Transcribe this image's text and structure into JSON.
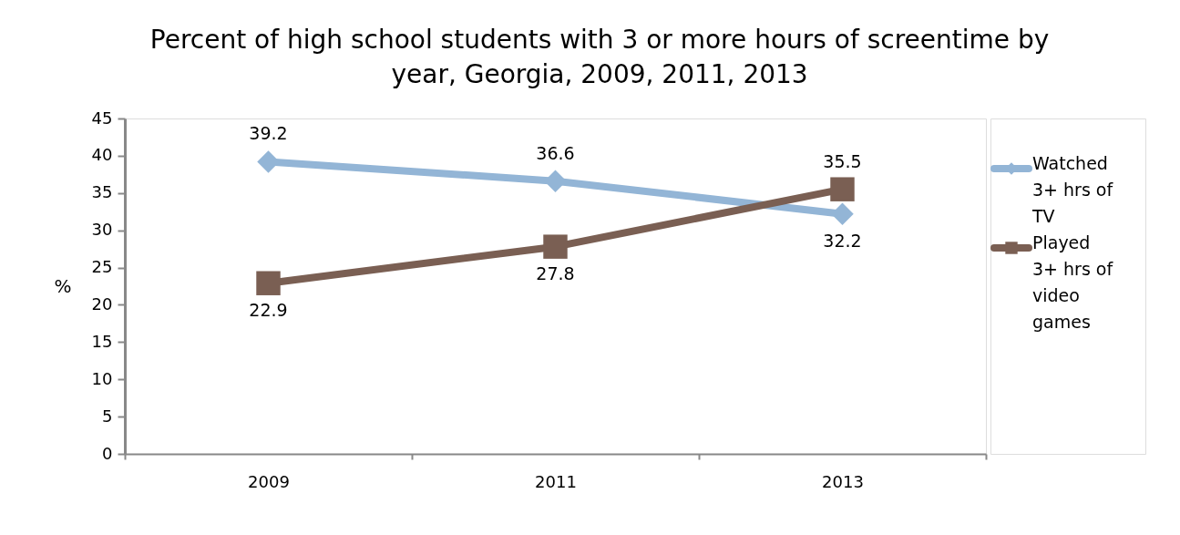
{
  "chart_data": {
    "type": "line",
    "title": "Percent of high school students with 3 or more hours of screentime by year, Georgia, 2009, 2011, 2013",
    "ylabel": "%",
    "categories": [
      "2009",
      "2011",
      "2013"
    ],
    "series": [
      {
        "name": "Watched 3+ hrs of TV",
        "color": "#93b5d6",
        "marker": "diamond",
        "values": [
          39.2,
          36.6,
          32.2
        ]
      },
      {
        "name": "Played 3+ hrs of video games",
        "color": "#7a5f53",
        "marker": "square",
        "values": [
          22.9,
          27.8,
          35.5
        ]
      }
    ],
    "ylim": [
      0,
      45
    ],
    "yticks": [
      0,
      5,
      10,
      15,
      20,
      25,
      30,
      35,
      40,
      45
    ],
    "data_labels": true,
    "legend": "right",
    "line_style": "solid"
  }
}
